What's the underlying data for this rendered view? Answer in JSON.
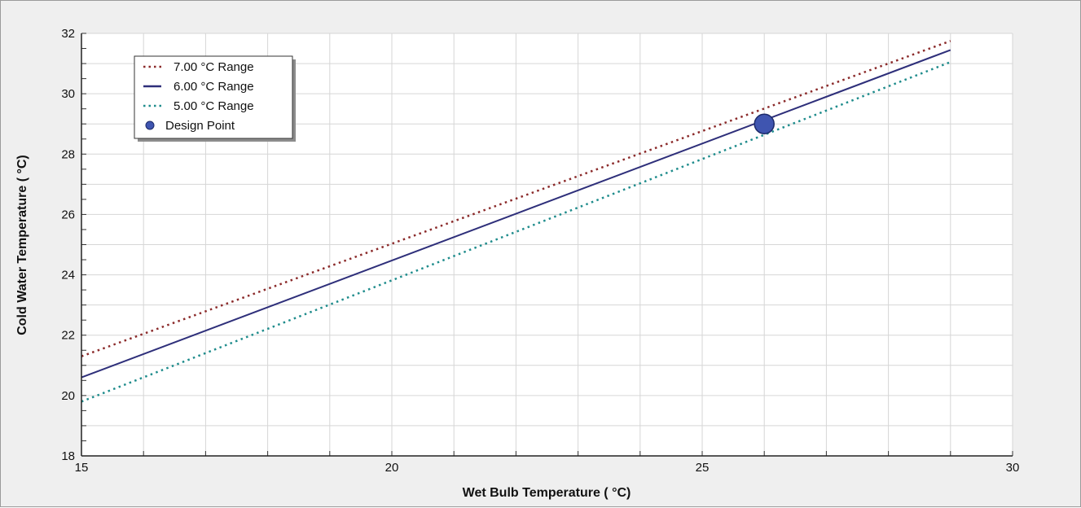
{
  "chart_data": {
    "type": "line",
    "xlabel": "Wet Bulb Temperature ( °C)",
    "ylabel": "Cold Water Temperature ( °C)",
    "xlim": [
      15,
      30
    ],
    "ylim": [
      18,
      32
    ],
    "x_ticks": [
      "15",
      "20",
      "25",
      "30"
    ],
    "y_ticks": [
      "18",
      "20",
      "22",
      "24",
      "26",
      "28",
      "30",
      "32"
    ],
    "grid": true,
    "legend_position": "top-left",
    "series": [
      {
        "name": "7.00  °C Range",
        "style": "dotted",
        "color": "#8b2a2a",
        "x": [
          15,
          29
        ],
        "y": [
          21.3,
          31.75
        ]
      },
      {
        "name": "6.00  °C Range",
        "style": "solid",
        "color": "#2e2f7a",
        "x": [
          15,
          29
        ],
        "y": [
          20.6,
          31.45
        ]
      },
      {
        "name": "5.00  °C Range",
        "style": "dotted",
        "color": "#1f8c8c",
        "x": [
          15,
          29
        ],
        "y": [
          19.8,
          31.05
        ]
      }
    ],
    "design_point": {
      "name": "Design Point",
      "x": 26,
      "y": 29,
      "color": "#3f55b0"
    }
  }
}
